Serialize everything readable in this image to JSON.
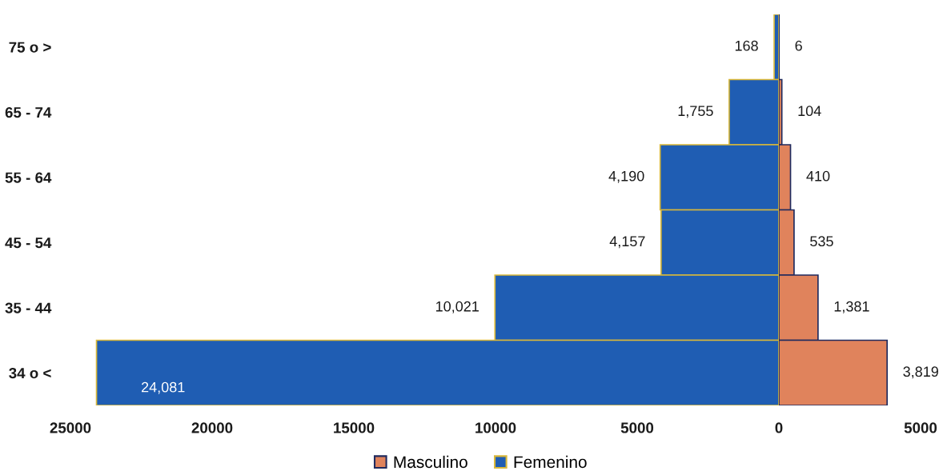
{
  "chart_data": [
    {
      "type": "bar",
      "orientation": "horizontal",
      "categories": [
        "75 o >",
        "65 - 74",
        "55 - 64",
        "45 - 54",
        "35 - 44",
        "34 o <"
      ],
      "series": [
        {
          "name": "Femenino",
          "color": "#1f5db3",
          "values": [
            168,
            1755,
            4190,
            4157,
            10021,
            24081
          ],
          "value_labels": [
            "168",
            "1,755",
            "4,190",
            "4,157",
            "10,021",
            "24,081"
          ]
        }
      ],
      "xlim": [
        25000,
        0
      ],
      "xticks": [
        25000,
        20000,
        15000,
        10000,
        5000
      ],
      "legend": "bottom"
    },
    {
      "type": "bar",
      "orientation": "horizontal",
      "categories": [
        null,
        null,
        null,
        null,
        null,
        null
      ],
      "series": [
        {
          "name": "Masculino",
          "color": "#e0835c",
          "values": [
            6,
            104,
            410,
            535,
            1381,
            3819
          ],
          "value_labels": [
            "6",
            "104",
            "410",
            "535",
            "1,381",
            "3,819"
          ]
        }
      ],
      "xlim": [
        0,
        5000
      ],
      "xticks": [
        0,
        5000
      ],
      "tick_labels": "x",
      "legend": "bottom"
    }
  ]
}
